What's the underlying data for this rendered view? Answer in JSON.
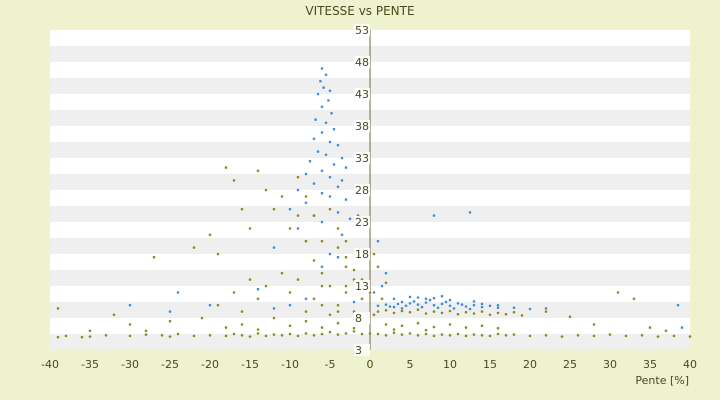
{
  "chart_data": {
    "type": "scatter",
    "title": "VITESSE vs PENTE",
    "xlabel": "Pente [%]",
    "ylabel": "",
    "xlim": [
      -40,
      40
    ],
    "ylim": [
      3,
      53
    ],
    "x_ticks": [
      -40,
      -35,
      -30,
      -25,
      -20,
      -15,
      -10,
      -5,
      0,
      5,
      10,
      15,
      20,
      25,
      30,
      35,
      40
    ],
    "y_ticks": [
      3,
      8,
      13,
      18,
      23,
      28,
      33,
      38,
      43,
      48,
      53
    ],
    "grid": "horizontal alternating bands",
    "legend": "none",
    "colors": {
      "series_1": "#3d8fd8",
      "series_2": "#8c8c1a",
      "background": "#eef2cf",
      "band_light": "#ffffff",
      "band_dark": "#efefef"
    },
    "series": [
      {
        "points": [
          [
            -6,
            47
          ],
          [
            -5.5,
            46
          ],
          [
            -6.2,
            45
          ],
          [
            -5.8,
            44
          ],
          [
            -5,
            43.5
          ],
          [
            -6.5,
            43
          ],
          [
            -5.2,
            42
          ],
          [
            -6,
            41
          ],
          [
            -4.8,
            40
          ],
          [
            -6.8,
            39
          ],
          [
            -5.5,
            38.5
          ],
          [
            -4.5,
            37.5
          ],
          [
            -6,
            37
          ],
          [
            -7,
            36
          ],
          [
            -5,
            35.5
          ],
          [
            -4,
            35
          ],
          [
            -6.5,
            34
          ],
          [
            -5.5,
            33.5
          ],
          [
            -3.5,
            33
          ],
          [
            -7.5,
            32.5
          ],
          [
            -4.5,
            32
          ],
          [
            -3,
            31.5
          ],
          [
            -6,
            31
          ],
          [
            -8,
            30.5
          ],
          [
            -5,
            30
          ],
          [
            -3.5,
            29.5
          ],
          [
            -7,
            29
          ],
          [
            -4,
            28.5
          ],
          [
            -9,
            28
          ],
          [
            -6,
            27.5
          ],
          [
            -5,
            27
          ],
          [
            -3,
            26.5
          ],
          [
            -8,
            26
          ],
          [
            -10,
            25
          ],
          [
            -4,
            24.5
          ],
          [
            -7,
            24
          ],
          [
            -2.5,
            23.5
          ],
          [
            -6,
            23
          ],
          [
            -9,
            22
          ],
          [
            -3.5,
            21
          ],
          [
            -8,
            20
          ],
          [
            -12,
            19
          ],
          [
            -5,
            18
          ],
          [
            -4,
            17.5
          ],
          [
            -6,
            16
          ],
          [
            -14,
            12.5
          ],
          [
            -24,
            12
          ],
          [
            -1.5,
            24
          ],
          [
            8,
            24
          ],
          [
            12.5,
            24.5
          ],
          [
            1,
            20
          ],
          [
            2,
            15
          ],
          [
            1.5,
            13
          ],
          [
            0.5,
            12
          ],
          [
            3,
            11
          ],
          [
            4,
            10.5
          ],
          [
            5,
            10.3
          ],
          [
            6,
            10.1
          ],
          [
            7,
            10.4
          ],
          [
            8,
            10
          ],
          [
            9,
            10.2
          ],
          [
            10,
            9.9
          ],
          [
            11,
            10.3
          ],
          [
            12,
            9.8
          ],
          [
            13,
            10
          ],
          [
            14,
            9.7
          ],
          [
            15,
            9.9
          ],
          [
            16,
            9.6
          ],
          [
            2.5,
            9.8
          ],
          [
            3.5,
            10.2
          ],
          [
            4.5,
            9.9
          ],
          [
            5.5,
            10.6
          ],
          [
            6.5,
            9.7
          ],
          [
            7.5,
            10.8
          ],
          [
            8.5,
            9.6
          ],
          [
            9.5,
            10.5
          ],
          [
            10.5,
            9.5
          ],
          [
            11.5,
            10.1
          ],
          [
            12.5,
            9.4
          ],
          [
            6,
            11.2
          ],
          [
            7,
            11
          ],
          [
            5,
            11.3
          ],
          [
            8,
            11.1
          ],
          [
            4,
            9.5
          ],
          [
            3,
            9.7
          ],
          [
            2,
            10.1
          ],
          [
            1,
            9.9
          ],
          [
            9,
            11.4
          ],
          [
            10,
            10.8
          ],
          [
            13,
            10.6
          ],
          [
            14,
            10.2
          ],
          [
            16,
            10
          ],
          [
            18,
            9.6
          ],
          [
            20,
            9.4
          ],
          [
            22,
            9.5
          ],
          [
            -20,
            10
          ],
          [
            -25,
            9
          ],
          [
            -30,
            10
          ],
          [
            38.5,
            10
          ],
          [
            39,
            6.5
          ],
          [
            -12,
            9.5
          ],
          [
            -10,
            10
          ],
          [
            -8,
            11
          ],
          [
            -2,
            10.5
          ]
        ]
      },
      {
        "points": [
          [
            -39,
            5
          ],
          [
            -38,
            5.2
          ],
          [
            -35,
            5.1
          ],
          [
            -33,
            5.3
          ],
          [
            -30,
            5.2
          ],
          [
            -28,
            5.4
          ],
          [
            -26,
            5.3
          ],
          [
            -25,
            5.1
          ],
          [
            -24,
            5.5
          ],
          [
            -22,
            5.2
          ],
          [
            -20,
            5.3
          ],
          [
            -18,
            5.2
          ],
          [
            -17,
            5.5
          ],
          [
            -16,
            5.3
          ],
          [
            -15,
            5.1
          ],
          [
            -14,
            5.6
          ],
          [
            -13,
            5.2
          ],
          [
            -12,
            5.4
          ],
          [
            -11,
            5.3
          ],
          [
            -10,
            5.5
          ],
          [
            -9,
            5.2
          ],
          [
            -8,
            5.6
          ],
          [
            -7,
            5.3
          ],
          [
            -6,
            5.5
          ],
          [
            -5,
            5.8
          ],
          [
            -4,
            5.4
          ],
          [
            -3,
            5.6
          ],
          [
            -2,
            5.9
          ],
          [
            -1,
            5.5
          ],
          [
            0,
            5.6
          ],
          [
            1,
            5.5
          ],
          [
            2,
            5.3
          ],
          [
            3,
            5.7
          ],
          [
            4,
            5.4
          ],
          [
            5,
            5.6
          ],
          [
            6,
            5.3
          ],
          [
            7,
            5.5
          ],
          [
            8,
            5.2
          ],
          [
            9,
            5.4
          ],
          [
            10,
            5.3
          ],
          [
            11,
            5.5
          ],
          [
            12,
            5.2
          ],
          [
            13,
            5.4
          ],
          [
            14,
            5.3
          ],
          [
            15,
            5.2
          ],
          [
            16,
            5.5
          ],
          [
            17,
            5.3
          ],
          [
            18,
            5.4
          ],
          [
            20,
            5.2
          ],
          [
            22,
            5.3
          ],
          [
            24,
            5.1
          ],
          [
            26,
            5.3
          ],
          [
            28,
            5.2
          ],
          [
            30,
            5.4
          ],
          [
            32,
            5.2
          ],
          [
            34,
            5.3
          ],
          [
            36,
            5.1
          ],
          [
            38,
            5.2
          ],
          [
            40,
            5.1
          ],
          [
            -36,
            5
          ],
          [
            -27,
            17.5
          ],
          [
            -22,
            19
          ],
          [
            -20,
            21
          ],
          [
            -19,
            18
          ],
          [
            -18,
            31.5
          ],
          [
            -17,
            29.5
          ],
          [
            -16,
            25
          ],
          [
            -15,
            22
          ],
          [
            -14,
            31
          ],
          [
            -13,
            28
          ],
          [
            -12,
            25
          ],
          [
            -11,
            27
          ],
          [
            -10,
            22
          ],
          [
            -9,
            24
          ],
          [
            -8,
            20
          ],
          [
            -7,
            17
          ],
          [
            -6,
            15
          ],
          [
            -5,
            13
          ],
          [
            -4,
            19
          ],
          [
            -3,
            16
          ],
          [
            -2,
            14
          ],
          [
            -21,
            8
          ],
          [
            -19,
            10
          ],
          [
            -17,
            12
          ],
          [
            -16,
            9
          ],
          [
            -15,
            14
          ],
          [
            -14,
            11
          ],
          [
            -13,
            13
          ],
          [
            -12,
            8
          ],
          [
            -11,
            15
          ],
          [
            -10,
            12
          ],
          [
            -9,
            14
          ],
          [
            -8,
            9
          ],
          [
            -7,
            11
          ],
          [
            -6,
            13
          ],
          [
            -5,
            8.5
          ],
          [
            -4,
            10
          ],
          [
            -3,
            12
          ],
          [
            -2,
            9
          ],
          [
            -1,
            11
          ],
          [
            0.5,
            8.5
          ],
          [
            1,
            9
          ],
          [
            2,
            9.2
          ],
          [
            3,
            8.8
          ],
          [
            4,
            9.1
          ],
          [
            5,
            8.9
          ],
          [
            6,
            9.3
          ],
          [
            7,
            8.7
          ],
          [
            8,
            9
          ],
          [
            9,
            8.8
          ],
          [
            10,
            9.1
          ],
          [
            11,
            8.6
          ],
          [
            12,
            8.9
          ],
          [
            13,
            8.7
          ],
          [
            14,
            9
          ],
          [
            15,
            8.5
          ],
          [
            16,
            8.8
          ],
          [
            17,
            8.6
          ],
          [
            18,
            8.9
          ],
          [
            19,
            8.4
          ],
          [
            2,
            7
          ],
          [
            4,
            6.8
          ],
          [
            6,
            7.2
          ],
          [
            8,
            6.6
          ],
          [
            10,
            7
          ],
          [
            12,
            6.5
          ],
          [
            14,
            6.8
          ],
          [
            16,
            6.4
          ],
          [
            3,
            6.2
          ],
          [
            7,
            6.1
          ],
          [
            0.5,
            18
          ],
          [
            1,
            16
          ],
          [
            2,
            13.5
          ],
          [
            1.5,
            11
          ],
          [
            -30,
            7
          ],
          [
            -32,
            8.5
          ],
          [
            -35,
            6
          ],
          [
            -39,
            9.5
          ],
          [
            -28,
            6
          ],
          [
            -25,
            7.5
          ],
          [
            -18,
            6.5
          ],
          [
            -16,
            7
          ],
          [
            -14,
            6.2
          ],
          [
            -10,
            6.8
          ],
          [
            -8,
            7.5
          ],
          [
            -6,
            6.5
          ],
          [
            -4,
            7.2
          ],
          [
            -2,
            6.4
          ],
          [
            22,
            9
          ],
          [
            25,
            8.2
          ],
          [
            28,
            7
          ],
          [
            31,
            12
          ],
          [
            33,
            11
          ],
          [
            35,
            6.5
          ],
          [
            37,
            6
          ],
          [
            -3,
            17.5
          ],
          [
            -4,
            22
          ],
          [
            -5,
            25
          ],
          [
            -3,
            20
          ],
          [
            -2,
            15.5
          ],
          [
            0,
            12
          ],
          [
            -1,
            14
          ],
          [
            -6,
            20
          ],
          [
            -7,
            24
          ],
          [
            -8,
            27
          ],
          [
            -9,
            30
          ],
          [
            -6,
            10
          ],
          [
            -4,
            9
          ],
          [
            -3,
            13
          ]
        ]
      }
    ]
  }
}
